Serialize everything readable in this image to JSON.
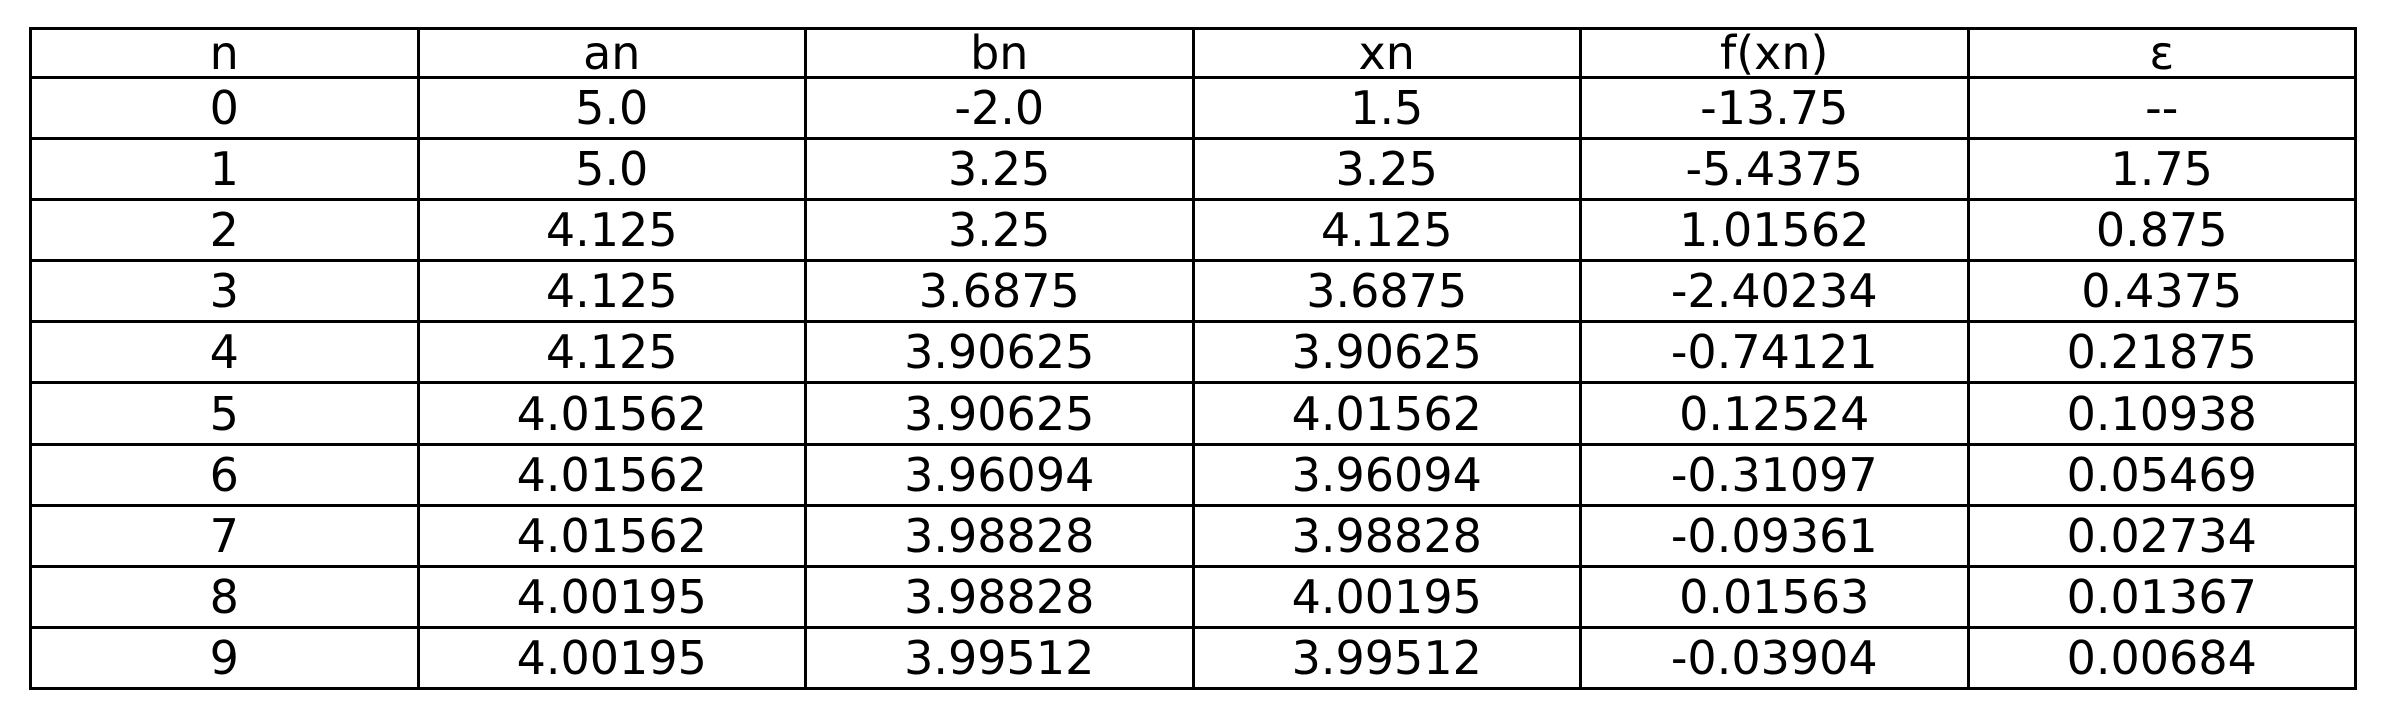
{
  "chart_data": {
    "type": "table",
    "columns": [
      "n",
      "an",
      "bn",
      "xn",
      "f(xn)",
      "ε"
    ],
    "rows": [
      [
        "0",
        "5.0",
        "-2.0",
        "1.5",
        "-13.75",
        "--"
      ],
      [
        "1",
        "5.0",
        "3.25",
        "3.25",
        "-5.4375",
        "1.75"
      ],
      [
        "2",
        "4.125",
        "3.25",
        "4.125",
        "1.01562",
        "0.875"
      ],
      [
        "3",
        "4.125",
        "3.6875",
        "3.6875",
        "-2.40234",
        "0.4375"
      ],
      [
        "4",
        "4.125",
        "3.90625",
        "3.90625",
        "-0.74121",
        "0.21875"
      ],
      [
        "5",
        "4.01562",
        "3.90625",
        "4.01562",
        "0.12524",
        "0.10938"
      ],
      [
        "6",
        "4.01562",
        "3.96094",
        "3.96094",
        "-0.31097",
        "0.05469"
      ],
      [
        "7",
        "4.01562",
        "3.98828",
        "3.98828",
        "-0.09361",
        "0.02734"
      ],
      [
        "8",
        "4.00195",
        "3.98828",
        "4.00195",
        "0.01563",
        "0.01367"
      ],
      [
        "9",
        "4.00195",
        "3.99512",
        "3.99512",
        "-0.03904",
        "0.00684"
      ]
    ]
  }
}
